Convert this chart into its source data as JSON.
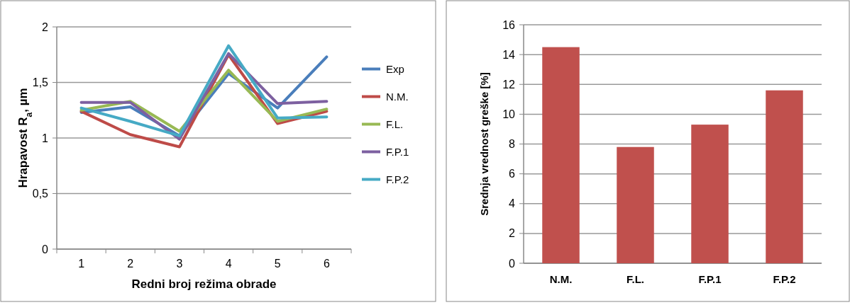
{
  "chart_data": [
    {
      "type": "line",
      "xlabel": "Redni broj režima obrade",
      "ylabel": "Hrapavost R$_{a}$, µm",
      "categories": [
        "1",
        "2",
        "3",
        "4",
        "5",
        "6"
      ],
      "ylim": [
        0,
        2
      ],
      "yticks": [
        0,
        {
          "value": 0.5,
          "label": "0,5"
        },
        1,
        {
          "value": 1.5,
          "label": "1,5"
        },
        2
      ],
      "grid": "y",
      "legend": "right",
      "marker": "none",
      "series": [
        {
          "name": "Exp",
          "color": "#4a7ebb",
          "values": [
            1.23,
            1.28,
            1.02,
            1.58,
            1.27,
            1.73
          ]
        },
        {
          "name": "N.M.",
          "color": "#be4b48",
          "values": [
            1.24,
            1.03,
            0.92,
            1.75,
            1.13,
            1.24
          ]
        },
        {
          "name": "F.L.",
          "color": "#98b954",
          "values": [
            1.25,
            1.33,
            1.06,
            1.61,
            1.15,
            1.26
          ]
        },
        {
          "name": "F.P.1",
          "color": "#7d60a0",
          "values": [
            1.32,
            1.32,
            0.99,
            1.76,
            1.31,
            1.33
          ]
        },
        {
          "name": "F.P.2",
          "color": "#46aac5",
          "values": [
            1.27,
            1.15,
            1.02,
            1.83,
            1.18,
            1.19
          ]
        }
      ]
    },
    {
      "type": "bar",
      "ylabel": "Srednja vrednost greške [%]",
      "categories": [
        "N.M.",
        "F.L.",
        "F.P.1",
        "F.P.2"
      ],
      "values": [
        14.5,
        7.8,
        9.3,
        11.6
      ],
      "color": "#c0504d",
      "ylim": [
        0,
        16
      ],
      "yticks": [
        0,
        2,
        4,
        6,
        8,
        10,
        12,
        14,
        16
      ],
      "grid": "y"
    }
  ]
}
